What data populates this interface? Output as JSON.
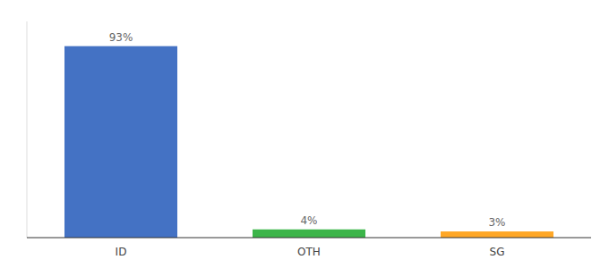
{
  "chart_data": {
    "type": "bar",
    "categories": [
      "ID",
      "OTH",
      "SG"
    ],
    "values": [
      93,
      4,
      3
    ],
    "value_labels": [
      "93%",
      "4%",
      "3%"
    ],
    "colors": [
      "#4472c4",
      "#3cb54a",
      "#ffa726"
    ],
    "ylim": [
      0,
      105
    ],
    "data_labels": true,
    "tick_labels": "x"
  }
}
